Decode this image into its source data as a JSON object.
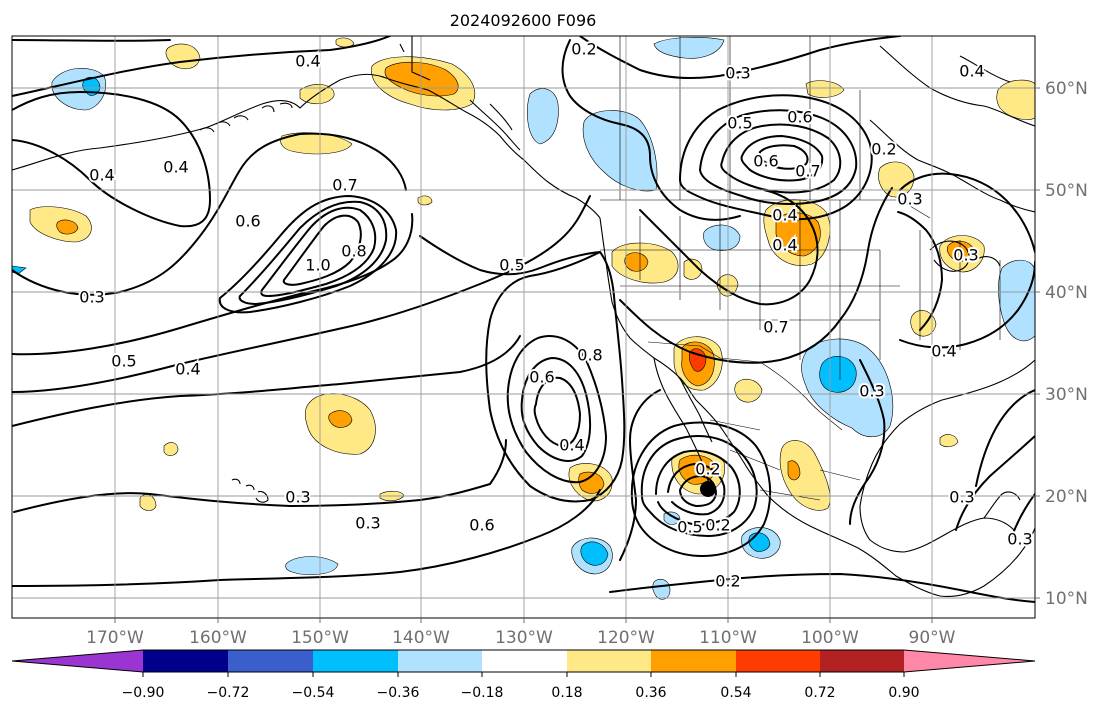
{
  "title": "2024092600 F096",
  "x_axis": {
    "ticks": [
      "170°W",
      "160°W",
      "150°W",
      "140°W",
      "130°W",
      "120°W",
      "110°W",
      "100°W",
      "90°W"
    ]
  },
  "y_axis": {
    "ticks": [
      "60°N",
      "50°N",
      "40°N",
      "30°N",
      "20°N",
      "10°N"
    ]
  },
  "contour_labels": [
    "0.4",
    "0.2",
    "0.3",
    "0.4",
    "0.5",
    "0.6",
    "0.7",
    "0.6",
    "0.4",
    "0.4",
    "0.2",
    "0.3",
    "0.3",
    "0.7",
    "0.6",
    "1.0",
    "0.8",
    "0.5",
    "0.5",
    "0.4",
    "0.4",
    "0.4",
    "0.7",
    "0.6",
    "0.8",
    "0.4",
    "0.2",
    "0.3",
    "0.4",
    "0.3",
    "0.3",
    "0.3",
    "0.6",
    "0.5",
    "0.2",
    "0.2",
    "0.3",
    "0.3"
  ],
  "colorbar": {
    "ticks": [
      "−0.90",
      "−0.72",
      "−0.54",
      "−0.36",
      "−0.18",
      "0.18",
      "0.36",
      "0.54",
      "0.72",
      "0.90"
    ],
    "colors": [
      "#9a35d2",
      "#00008b",
      "#3a5fcd",
      "#00bfff",
      "#b0e2ff",
      "#ffffff",
      "#ffe886",
      "#ffa000",
      "#ff3c00",
      "#b22222",
      "#ff88a8"
    ]
  },
  "colors": {
    "light_blue": "#b0e2ff",
    "blue": "#00bfff",
    "yellow": "#ffe886",
    "orange": "#ffa000",
    "red": "#ff3c00",
    "marker": "#000000"
  }
}
